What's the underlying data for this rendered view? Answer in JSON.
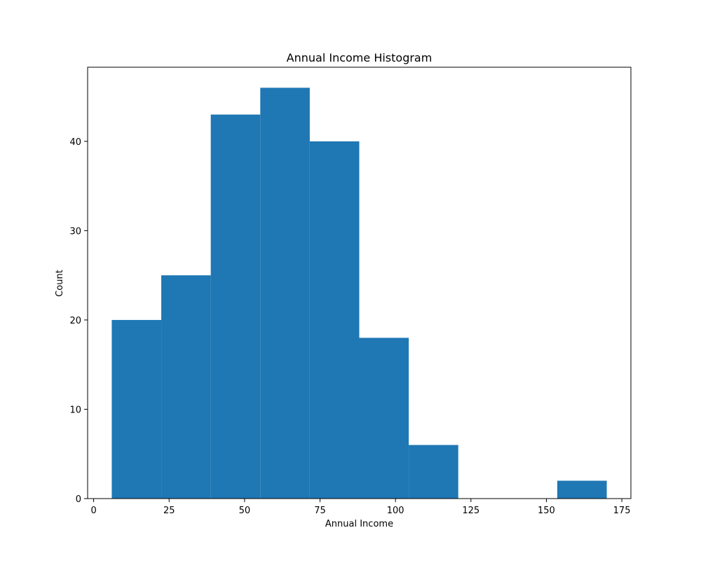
{
  "chart_data": {
    "type": "bar",
    "title": "Annual Income Histogram",
    "xlabel": "Annual Income",
    "ylabel": "Count",
    "xlim": [
      -2,
      178
    ],
    "ylim": [
      0,
      48.3
    ],
    "xticks": [
      0,
      25,
      50,
      75,
      100,
      125,
      150,
      175
    ],
    "yticks": [
      0,
      10,
      20,
      30,
      40
    ],
    "bins": [
      {
        "start": 6.0,
        "end": 22.4,
        "count": 20
      },
      {
        "start": 22.4,
        "end": 38.8,
        "count": 25
      },
      {
        "start": 38.8,
        "end": 55.2,
        "count": 43
      },
      {
        "start": 55.2,
        "end": 71.6,
        "count": 46
      },
      {
        "start": 71.6,
        "end": 88.0,
        "count": 40
      },
      {
        "start": 88.0,
        "end": 104.4,
        "count": 18
      },
      {
        "start": 104.4,
        "end": 120.8,
        "count": 6
      },
      {
        "start": 120.8,
        "end": 137.2,
        "count": 0
      },
      {
        "start": 137.2,
        "end": 153.6,
        "count": 0
      },
      {
        "start": 153.6,
        "end": 170.0,
        "count": 2
      }
    ],
    "bar_color": "#1f77b4",
    "grid": false,
    "legend": "none"
  }
}
